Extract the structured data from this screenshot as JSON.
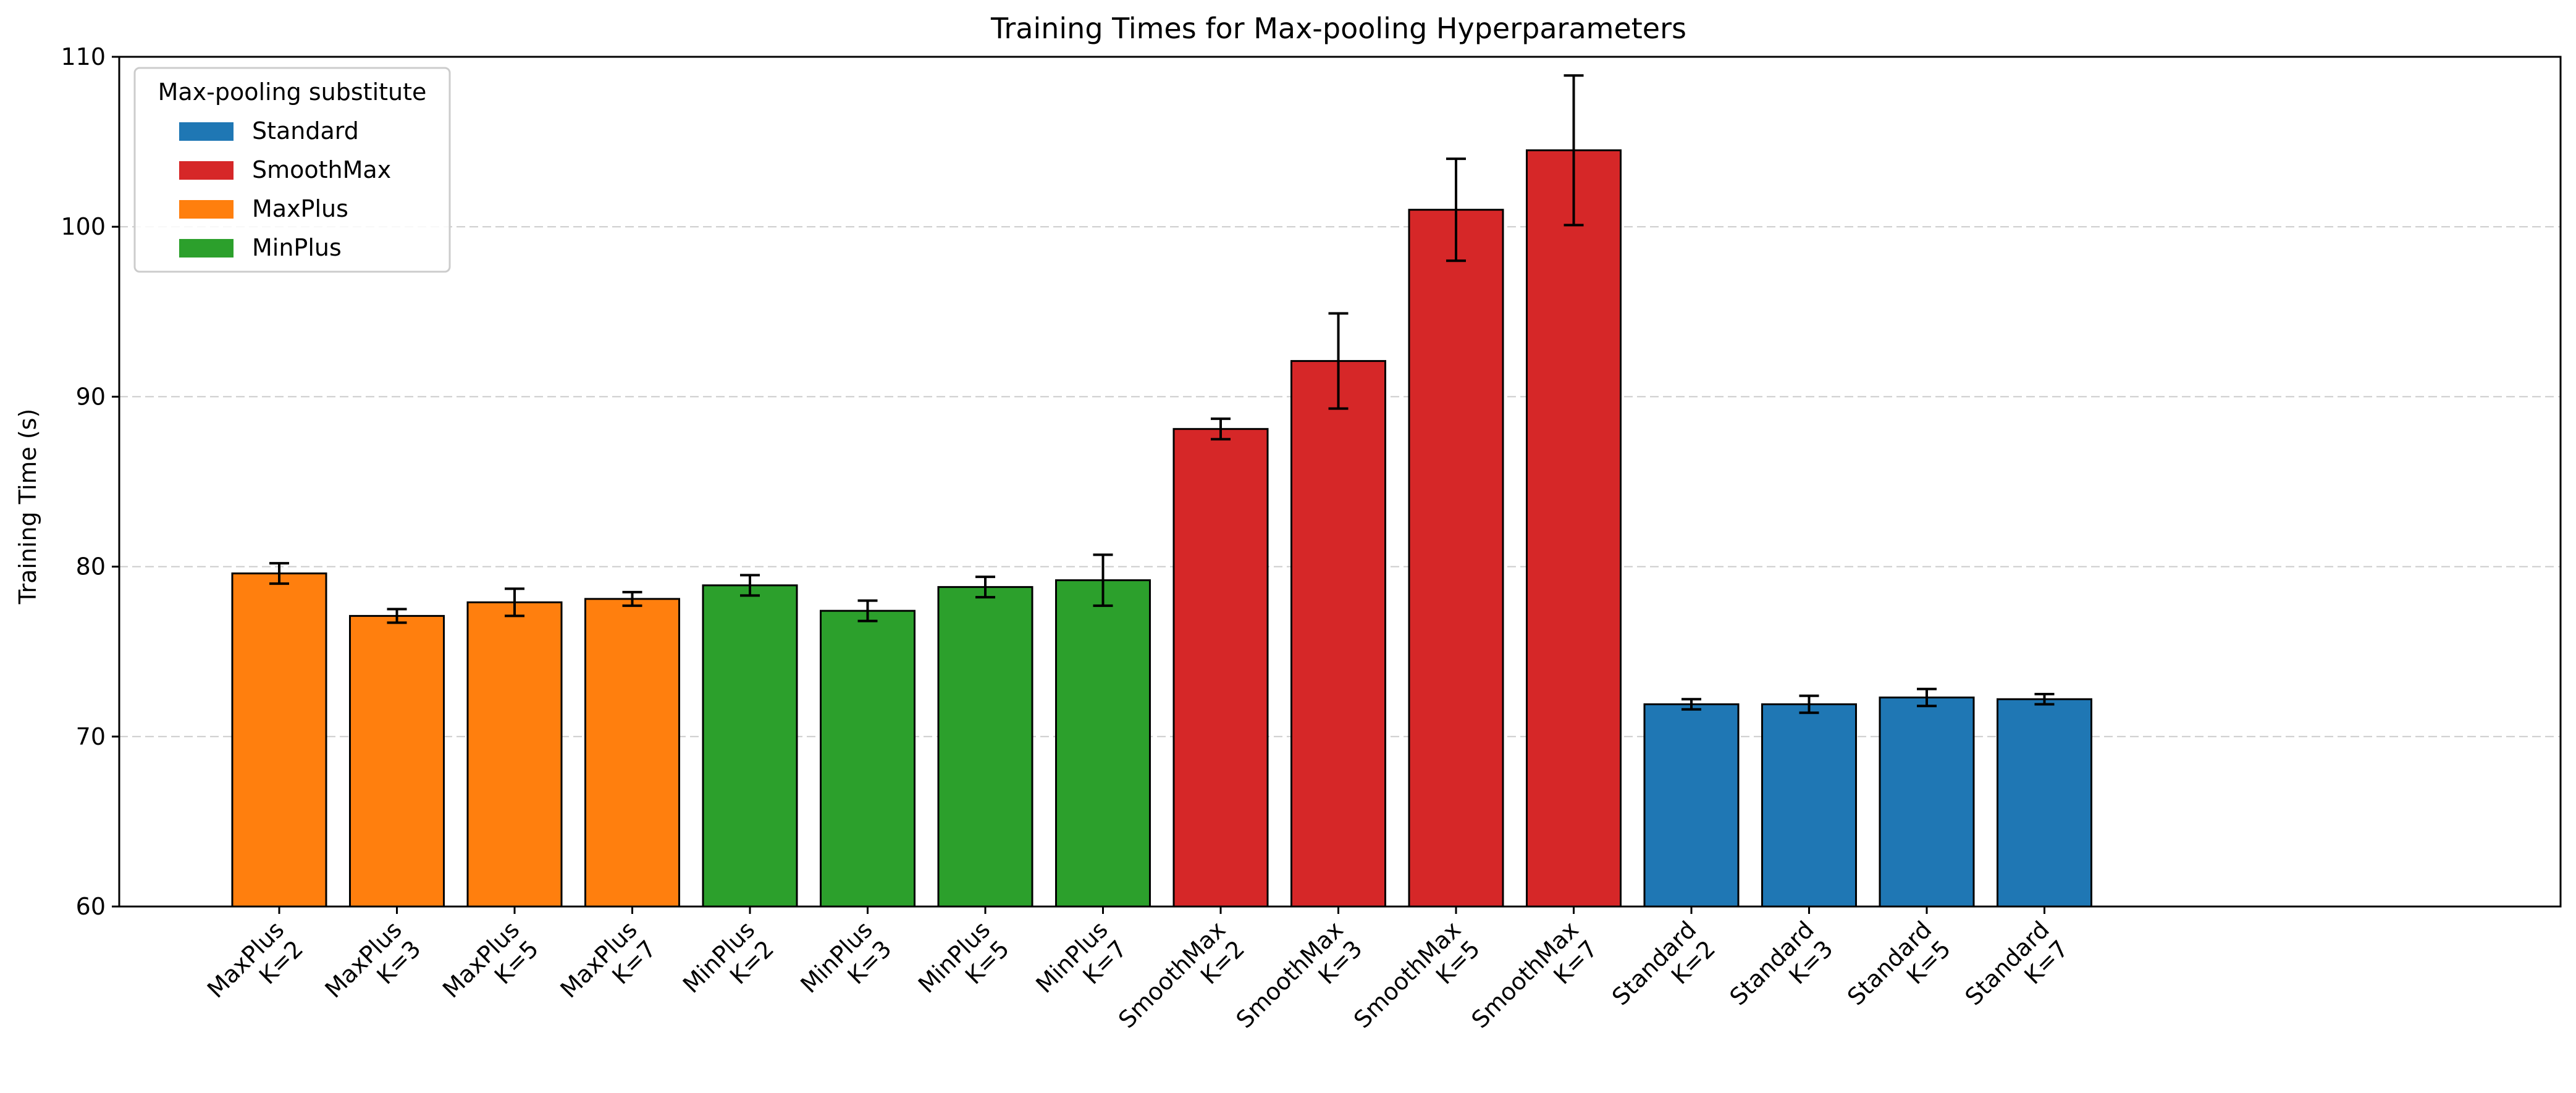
{
  "chart_data": {
    "type": "bar",
    "title": "Training Times for Max-pooling Hyperparameters",
    "xlabel": "",
    "ylabel": "Training Time (s)",
    "ylim": [
      60,
      110
    ],
    "yticks": [
      60,
      70,
      80,
      90,
      100,
      110
    ],
    "grid": "y-dashed",
    "legend": {
      "title": "Max-pooling substitute",
      "placement": "top-left",
      "entries": [
        {
          "name": "Standard",
          "color": "#1f77b4"
        },
        {
          "name": "SmoothMax",
          "color": "#d62728"
        },
        {
          "name": "MaxPlus",
          "color": "#ff7f0e"
        },
        {
          "name": "MinPlus",
          "color": "#2ca02c"
        }
      ]
    },
    "groups": [
      {
        "name": "MaxPlus",
        "color": "#ff7f0e",
        "bars": [
          {
            "label": "MaxPlus K=2",
            "line1": "MaxPlus",
            "line2": "K=2",
            "value": 79.6,
            "err": 0.6
          },
          {
            "label": "MaxPlus K=3",
            "line1": "MaxPlus",
            "line2": "K=3",
            "value": 77.1,
            "err": 0.4
          },
          {
            "label": "MaxPlus K=5",
            "line1": "MaxPlus",
            "line2": "K=5",
            "value": 77.9,
            "err": 0.8
          },
          {
            "label": "MaxPlus K=7",
            "line1": "MaxPlus",
            "line2": "K=7",
            "value": 78.1,
            "err": 0.4
          }
        ]
      },
      {
        "name": "MinPlus",
        "color": "#2ca02c",
        "bars": [
          {
            "label": "MinPlus K=2",
            "line1": "MinPlus",
            "line2": "K=2",
            "value": 78.9,
            "err": 0.6
          },
          {
            "label": "MinPlus K=3",
            "line1": "MinPlus",
            "line2": "K=3",
            "value": 77.4,
            "err": 0.6
          },
          {
            "label": "MinPlus K=5",
            "line1": "MinPlus",
            "line2": "K=5",
            "value": 78.8,
            "err": 0.6
          },
          {
            "label": "MinPlus K=7",
            "line1": "MinPlus",
            "line2": "K=7",
            "value": 79.2,
            "err": 1.5
          }
        ]
      },
      {
        "name": "SmoothMax",
        "color": "#d62728",
        "bars": [
          {
            "label": "SmoothMax K=2",
            "line1": "SmoothMax",
            "line2": "K=2",
            "value": 88.1,
            "err": 0.6
          },
          {
            "label": "SmoothMax K=3",
            "line1": "SmoothMax",
            "line2": "K=3",
            "value": 92.1,
            "err": 2.8
          },
          {
            "label": "SmoothMax K=5",
            "line1": "SmoothMax",
            "line2": "K=5",
            "value": 101.0,
            "err": 3.0
          },
          {
            "label": "SmoothMax K=7",
            "line1": "SmoothMax",
            "line2": "K=7",
            "value": 104.5,
            "err": 4.4
          }
        ]
      },
      {
        "name": "Standard",
        "color": "#1f77b4",
        "bars": [
          {
            "label": "Standard K=2",
            "line1": "Standard",
            "line2": "K=2",
            "value": 71.9,
            "err": 0.3
          },
          {
            "label": "Standard K=3",
            "line1": "Standard",
            "line2": "K=3",
            "value": 71.9,
            "err": 0.5
          },
          {
            "label": "Standard K=5",
            "line1": "Standard",
            "line2": "K=5",
            "value": 72.3,
            "err": 0.5
          },
          {
            "label": "Standard K=7",
            "line1": "Standard",
            "line2": "K=7",
            "value": 72.2,
            "err": 0.3
          }
        ]
      }
    ]
  }
}
